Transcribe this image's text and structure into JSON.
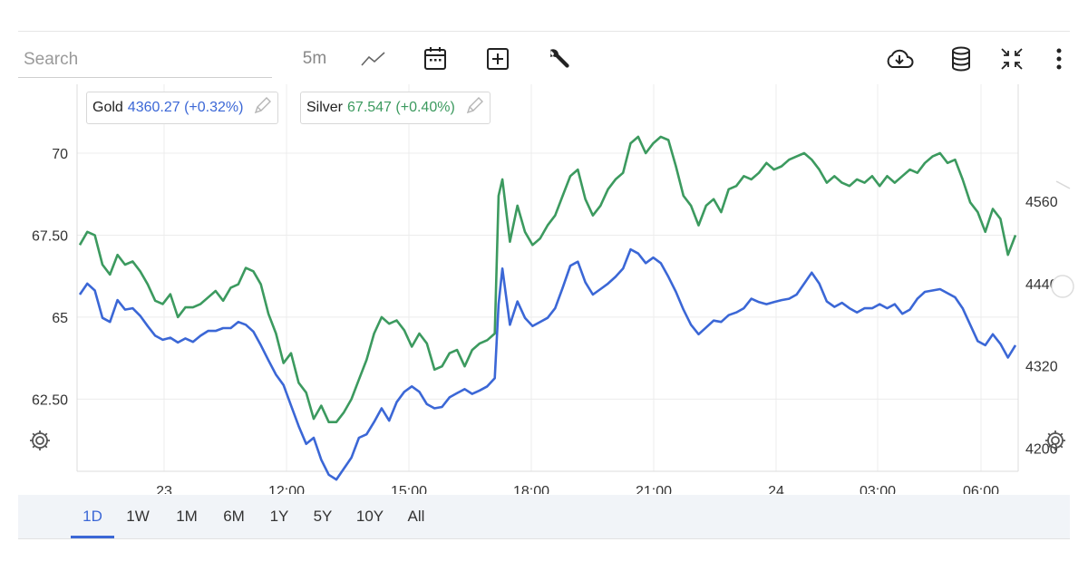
{
  "search": {
    "placeholder": "Search"
  },
  "toolbar": {
    "interval": "5m",
    "icons": [
      "line-chart-icon",
      "calendar-icon",
      "add-icon",
      "wrench-icon",
      "cloud-download-icon",
      "database-icon",
      "collapse-icon",
      "more-vert-icon"
    ]
  },
  "legend": {
    "gold": {
      "symbol": "Gold",
      "value": "4360.27 (+0.32%)",
      "color": "#3b67d6"
    },
    "silver": {
      "symbol": "Silver",
      "value": "67.547 (+0.40%)",
      "color": "#3c9a5f"
    }
  },
  "range": {
    "buttons": [
      "1D",
      "1W",
      "1M",
      "6M",
      "1Y",
      "5Y",
      "10Y",
      "All"
    ],
    "active": "1D"
  },
  "chart_data": {
    "type": "line",
    "x_ticks": [
      "23",
      "12:00",
      "15:00",
      "18:00",
      "21:00",
      "24",
      "03:00",
      "06:00"
    ],
    "left_axis": {
      "ticks": [
        "70",
        "67.50",
        "65",
        "62.50"
      ],
      "range": [
        60.3,
        72.1
      ],
      "series": "Silver"
    },
    "right_axis": {
      "ticks": [
        "4560",
        "4440",
        "4320",
        "4200"
      ],
      "range": [
        4166,
        4731
      ],
      "series": "Gold"
    },
    "grid": true,
    "series": [
      {
        "name": "Silver",
        "axis": "left",
        "color": "#3c9a5f",
        "points": [
          [
            0,
            67.2
          ],
          [
            1,
            67.6
          ],
          [
            2,
            67.5
          ],
          [
            3,
            66.6
          ],
          [
            4,
            66.3
          ],
          [
            5,
            66.9
          ],
          [
            6,
            66.6
          ],
          [
            7,
            66.7
          ],
          [
            8,
            66.4
          ],
          [
            9,
            66.0
          ],
          [
            10,
            65.5
          ],
          [
            11,
            65.4
          ],
          [
            12,
            65.7
          ],
          [
            13,
            65.0
          ],
          [
            14,
            65.3
          ],
          [
            15,
            65.3
          ],
          [
            16,
            65.4
          ],
          [
            17,
            65.6
          ],
          [
            18,
            65.8
          ],
          [
            19,
            65.5
          ],
          [
            20,
            65.9
          ],
          [
            21,
            66.0
          ],
          [
            22,
            66.5
          ],
          [
            23,
            66.4
          ],
          [
            24,
            66.0
          ],
          [
            25,
            65.1
          ],
          [
            26,
            64.5
          ],
          [
            27,
            63.6
          ],
          [
            28,
            63.9
          ],
          [
            29,
            63.0
          ],
          [
            30,
            62.7
          ],
          [
            31,
            61.9
          ],
          [
            32,
            62.3
          ],
          [
            33,
            61.8
          ],
          [
            34,
            61.8
          ],
          [
            35,
            62.1
          ],
          [
            36,
            62.5
          ],
          [
            37,
            63.1
          ],
          [
            38,
            63.7
          ],
          [
            39,
            64.5
          ],
          [
            40,
            65.0
          ],
          [
            41,
            64.8
          ],
          [
            42,
            64.9
          ],
          [
            43,
            64.6
          ],
          [
            44,
            64.1
          ],
          [
            45,
            64.5
          ],
          [
            46,
            64.2
          ],
          [
            47,
            63.4
          ],
          [
            48,
            63.5
          ],
          [
            49,
            63.9
          ],
          [
            50,
            64.0
          ],
          [
            51,
            63.5
          ],
          [
            52,
            64.0
          ],
          [
            53,
            64.2
          ],
          [
            54,
            64.3
          ],
          [
            55,
            64.5
          ],
          [
            55.5,
            68.7
          ],
          [
            56,
            69.2
          ],
          [
            57,
            67.3
          ],
          [
            58,
            68.4
          ],
          [
            59,
            67.6
          ],
          [
            60,
            67.2
          ],
          [
            61,
            67.4
          ],
          [
            62,
            67.8
          ],
          [
            63,
            68.1
          ],
          [
            64,
            68.7
          ],
          [
            65,
            69.3
          ],
          [
            66,
            69.5
          ],
          [
            67,
            68.6
          ],
          [
            68,
            68.1
          ],
          [
            69,
            68.4
          ],
          [
            70,
            68.9
          ],
          [
            71,
            69.2
          ],
          [
            72,
            69.4
          ],
          [
            73,
            70.3
          ],
          [
            74,
            70.5
          ],
          [
            75,
            70.0
          ],
          [
            76,
            70.3
          ],
          [
            77,
            70.5
          ],
          [
            78,
            70.4
          ],
          [
            79,
            69.6
          ],
          [
            80,
            68.7
          ],
          [
            81,
            68.4
          ],
          [
            82,
            67.8
          ],
          [
            83,
            68.4
          ],
          [
            84,
            68.6
          ],
          [
            85,
            68.2
          ],
          [
            86,
            68.9
          ],
          [
            87,
            69.0
          ],
          [
            88,
            69.3
          ],
          [
            89,
            69.2
          ],
          [
            90,
            69.4
          ],
          [
            91,
            69.7
          ],
          [
            92,
            69.5
          ],
          [
            93,
            69.6
          ],
          [
            94,
            69.8
          ],
          [
            95,
            69.9
          ],
          [
            96,
            70.0
          ],
          [
            97,
            69.8
          ],
          [
            98,
            69.5
          ],
          [
            99,
            69.1
          ],
          [
            100,
            69.3
          ],
          [
            101,
            69.1
          ],
          [
            102,
            69.0
          ],
          [
            103,
            69.2
          ],
          [
            104,
            69.1
          ],
          [
            105,
            69.3
          ],
          [
            106,
            69.0
          ],
          [
            107,
            69.3
          ],
          [
            108,
            69.1
          ],
          [
            109,
            69.3
          ],
          [
            110,
            69.5
          ],
          [
            111,
            69.4
          ],
          [
            112,
            69.7
          ],
          [
            113,
            69.9
          ],
          [
            114,
            70.0
          ],
          [
            115,
            69.7
          ],
          [
            116,
            69.8
          ],
          [
            117,
            69.2
          ],
          [
            118,
            68.5
          ],
          [
            119,
            68.2
          ],
          [
            120,
            67.6
          ],
          [
            121,
            68.3
          ],
          [
            122,
            68.0
          ],
          [
            123,
            66.9
          ],
          [
            124,
            67.5
          ]
        ]
      },
      {
        "name": "Gold",
        "axis": "right",
        "color": "#3b67d6",
        "points": [
          [
            0,
            4424
          ],
          [
            1,
            4440
          ],
          [
            2,
            4430
          ],
          [
            3,
            4390
          ],
          [
            4,
            4384
          ],
          [
            5,
            4416
          ],
          [
            6,
            4402
          ],
          [
            7,
            4404
          ],
          [
            8,
            4393
          ],
          [
            9,
            4378
          ],
          [
            10,
            4364
          ],
          [
            11,
            4358
          ],
          [
            12,
            4361
          ],
          [
            13,
            4354
          ],
          [
            14,
            4360
          ],
          [
            15,
            4355
          ],
          [
            16,
            4364
          ],
          [
            17,
            4371
          ],
          [
            18,
            4371
          ],
          [
            19,
            4375
          ],
          [
            20,
            4375
          ],
          [
            21,
            4384
          ],
          [
            22,
            4380
          ],
          [
            23,
            4370
          ],
          [
            24,
            4350
          ],
          [
            25,
            4328
          ],
          [
            26,
            4307
          ],
          [
            27,
            4292
          ],
          [
            28,
            4262
          ],
          [
            29,
            4232
          ],
          [
            30,
            4206
          ],
          [
            31,
            4215
          ],
          [
            32,
            4183
          ],
          [
            33,
            4161
          ],
          [
            34,
            4154
          ],
          [
            35,
            4170
          ],
          [
            36,
            4186
          ],
          [
            37,
            4215
          ],
          [
            38,
            4220
          ],
          [
            39,
            4238
          ],
          [
            40,
            4258
          ],
          [
            41,
            4240
          ],
          [
            42,
            4267
          ],
          [
            43,
            4282
          ],
          [
            44,
            4290
          ],
          [
            45,
            4282
          ],
          [
            46,
            4264
          ],
          [
            47,
            4258
          ],
          [
            48,
            4260
          ],
          [
            49,
            4274
          ],
          [
            50,
            4280
          ],
          [
            51,
            4286
          ],
          [
            52,
            4279
          ],
          [
            53,
            4284
          ],
          [
            54,
            4290
          ],
          [
            55,
            4302
          ],
          [
            55.5,
            4410
          ],
          [
            56,
            4462
          ],
          [
            57,
            4380
          ],
          [
            58,
            4414
          ],
          [
            59,
            4390
          ],
          [
            60,
            4378
          ],
          [
            61,
            4384
          ],
          [
            62,
            4390
          ],
          [
            63,
            4404
          ],
          [
            64,
            4434
          ],
          [
            65,
            4466
          ],
          [
            66,
            4472
          ],
          [
            67,
            4442
          ],
          [
            68,
            4424
          ],
          [
            69,
            4432
          ],
          [
            70,
            4440
          ],
          [
            71,
            4450
          ],
          [
            72,
            4462
          ],
          [
            73,
            4490
          ],
          [
            74,
            4484
          ],
          [
            75,
            4470
          ],
          [
            76,
            4478
          ],
          [
            77,
            4470
          ],
          [
            78,
            4450
          ],
          [
            79,
            4428
          ],
          [
            80,
            4402
          ],
          [
            81,
            4380
          ],
          [
            82,
            4366
          ],
          [
            83,
            4376
          ],
          [
            84,
            4386
          ],
          [
            85,
            4384
          ],
          [
            86,
            4394
          ],
          [
            87,
            4398
          ],
          [
            88,
            4404
          ],
          [
            89,
            4418
          ],
          [
            90,
            4413
          ],
          [
            91,
            4410
          ],
          [
            92,
            4413
          ],
          [
            93,
            4416
          ],
          [
            94,
            4418
          ],
          [
            95,
            4424
          ],
          [
            96,
            4440
          ],
          [
            97,
            4456
          ],
          [
            98,
            4440
          ],
          [
            99,
            4414
          ],
          [
            100,
            4406
          ],
          [
            101,
            4412
          ],
          [
            102,
            4404
          ],
          [
            103,
            4398
          ],
          [
            104,
            4404
          ],
          [
            105,
            4404
          ],
          [
            106,
            4410
          ],
          [
            107,
            4404
          ],
          [
            108,
            4410
          ],
          [
            109,
            4396
          ],
          [
            110,
            4402
          ],
          [
            111,
            4418
          ],
          [
            112,
            4428
          ],
          [
            113,
            4430
          ],
          [
            114,
            4432
          ],
          [
            115,
            4426
          ],
          [
            116,
            4420
          ],
          [
            117,
            4404
          ],
          [
            118,
            4380
          ],
          [
            119,
            4356
          ],
          [
            120,
            4350
          ],
          [
            121,
            4366
          ],
          [
            122,
            4352
          ],
          [
            123,
            4332
          ],
          [
            124,
            4350
          ]
        ]
      }
    ]
  }
}
